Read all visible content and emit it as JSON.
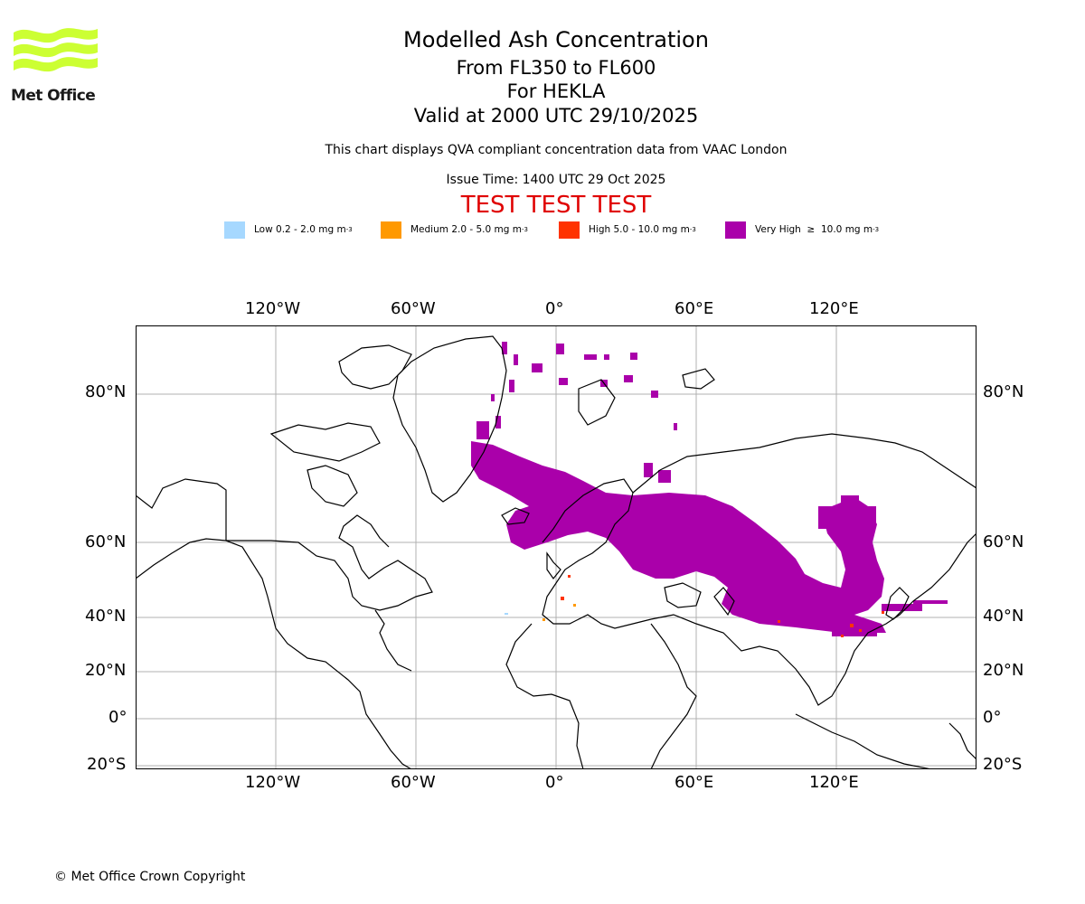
{
  "logo": {
    "text": "Met Office",
    "wave_color": "#ccff33"
  },
  "header": {
    "title": "Modelled Ash Concentration",
    "levels": "From FL350 to FL600",
    "volcano": "For HEKLA",
    "valid": "Valid at 2000 UTC 29/10/2025",
    "note": "This chart displays QVA compliant concentration data from VAAC London",
    "issue_time": "Issue Time: 1400 UTC 29 Oct 2025",
    "test_banner": "TEST TEST TEST"
  },
  "legend": [
    {
      "name": "Low",
      "label": "Low 0.2 - 2.0 mg m",
      "sup": "-3",
      "color": "#a6d8ff"
    },
    {
      "name": "Medium",
      "label": "Medium 2.0 - 5.0 mg m",
      "sup": "-3",
      "color": "#ff9900"
    },
    {
      "name": "High",
      "label": "High 5.0 - 10.0 mg m",
      "sup": "-3",
      "color": "#ff3300"
    },
    {
      "name": "Very High",
      "label": "Very High  ≥  10.0 mg m",
      "sup": "-3",
      "color": "#aa00aa"
    }
  ],
  "map": {
    "projection": "Mercator",
    "lon_ticks": [
      "120°W",
      "60°W",
      "0°",
      "60°E",
      "120°E"
    ],
    "lon_values": [
      -120,
      -60,
      0,
      60,
      120
    ],
    "lat_ticks": [
      "80°N",
      "60°N",
      "40°N",
      "20°N",
      "0°",
      "20°S"
    ],
    "lat_values": [
      80,
      60,
      40,
      20,
      0,
      -20
    ],
    "lon_range": [
      -180,
      180
    ],
    "lat_range": [
      -20,
      90
    ],
    "grid": true,
    "ash_level": "Very High"
  },
  "footer": {
    "copyright": "© Met Office Crown Copyright"
  }
}
